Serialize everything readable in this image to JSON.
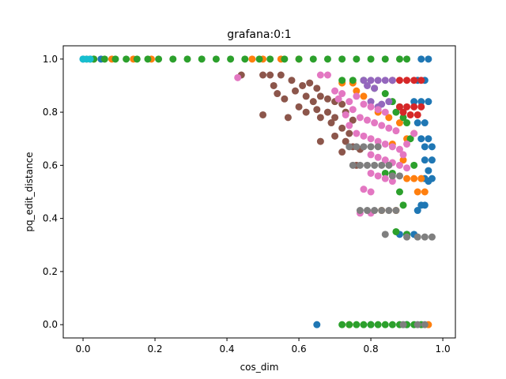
{
  "chart_data": {
    "type": "scatter",
    "title": "grafana:0:1",
    "xlabel": "cos_dim",
    "ylabel": "pq_edit_distance",
    "xlim": [
      -0.055,
      1.035
    ],
    "ylim": [
      -0.05,
      1.05
    ],
    "xticks": [
      0.0,
      0.2,
      0.4,
      0.6,
      0.8,
      1.0
    ],
    "yticks": [
      0.0,
      0.2,
      0.4,
      0.6,
      0.8,
      1.0
    ],
    "xtick_labels": [
      "0.0",
      "0.2",
      "0.4",
      "0.6",
      "0.8",
      "1.0"
    ],
    "ytick_labels": [
      "0.0",
      "0.2",
      "0.4",
      "0.6",
      "0.8",
      "1.0"
    ],
    "grid": false,
    "series": [
      {
        "color": "#1f77b4",
        "points": [
          [
            0.0,
            1.0
          ],
          [
            0.02,
            1.0
          ],
          [
            0.05,
            1.0
          ],
          [
            0.94,
            1.0
          ],
          [
            0.96,
            1.0
          ],
          [
            0.93,
            0.92
          ],
          [
            0.95,
            0.92
          ],
          [
            0.92,
            0.84
          ],
          [
            0.94,
            0.84
          ],
          [
            0.96,
            0.84
          ],
          [
            0.93,
            0.76
          ],
          [
            0.95,
            0.76
          ],
          [
            0.94,
            0.7
          ],
          [
            0.96,
            0.7
          ],
          [
            0.95,
            0.67
          ],
          [
            0.97,
            0.67
          ],
          [
            0.95,
            0.62
          ],
          [
            0.97,
            0.62
          ],
          [
            0.96,
            0.58
          ],
          [
            0.95,
            0.55
          ],
          [
            0.97,
            0.55
          ],
          [
            0.96,
            0.54
          ],
          [
            0.95,
            0.45
          ],
          [
            0.94,
            0.45
          ],
          [
            0.93,
            0.43
          ],
          [
            0.88,
            0.34
          ],
          [
            0.9,
            0.34
          ],
          [
            0.92,
            0.34
          ],
          [
            0.65,
            0.0
          ],
          [
            0.8,
            0.0
          ],
          [
            0.9,
            0.0
          ]
        ]
      },
      {
        "color": "#ff7f0e",
        "points": [
          [
            0.01,
            1.0
          ],
          [
            0.03,
            1.0
          ],
          [
            0.08,
            1.0
          ],
          [
            0.14,
            1.0
          ],
          [
            0.19,
            1.0
          ],
          [
            0.47,
            1.0
          ],
          [
            0.5,
            1.0
          ],
          [
            0.55,
            1.0
          ],
          [
            0.6,
            1.0
          ],
          [
            0.72,
            0.91
          ],
          [
            0.75,
            0.91
          ],
          [
            0.76,
            0.88
          ],
          [
            0.78,
            0.86
          ],
          [
            0.82,
            0.8
          ],
          [
            0.85,
            0.78
          ],
          [
            0.88,
            0.76
          ],
          [
            0.92,
            0.72
          ],
          [
            0.9,
            0.7
          ],
          [
            0.86,
            0.68
          ],
          [
            0.89,
            0.62
          ],
          [
            0.92,
            0.55
          ],
          [
            0.9,
            0.55
          ],
          [
            0.94,
            0.55
          ],
          [
            0.93,
            0.5
          ],
          [
            0.95,
            0.5
          ],
          [
            0.83,
            0.43
          ],
          [
            0.87,
            0.43
          ],
          [
            0.74,
            0.0
          ],
          [
            0.96,
            0.0
          ]
        ]
      },
      {
        "color": "#2ca02c",
        "points": [
          [
            0.03,
            1.0
          ],
          [
            0.06,
            1.0
          ],
          [
            0.09,
            1.0
          ],
          [
            0.12,
            1.0
          ],
          [
            0.15,
            1.0
          ],
          [
            0.18,
            1.0
          ],
          [
            0.21,
            1.0
          ],
          [
            0.25,
            1.0
          ],
          [
            0.29,
            1.0
          ],
          [
            0.33,
            1.0
          ],
          [
            0.37,
            1.0
          ],
          [
            0.41,
            1.0
          ],
          [
            0.45,
            1.0
          ],
          [
            0.49,
            1.0
          ],
          [
            0.52,
            1.0
          ],
          [
            0.56,
            1.0
          ],
          [
            0.6,
            1.0
          ],
          [
            0.64,
            1.0
          ],
          [
            0.68,
            1.0
          ],
          [
            0.72,
            1.0
          ],
          [
            0.76,
            1.0
          ],
          [
            0.8,
            1.0
          ],
          [
            0.84,
            1.0
          ],
          [
            0.88,
            1.0
          ],
          [
            0.9,
            1.0
          ],
          [
            0.72,
            0.92
          ],
          [
            0.75,
            0.92
          ],
          [
            0.78,
            0.92
          ],
          [
            0.81,
            0.89
          ],
          [
            0.84,
            0.87
          ],
          [
            0.86,
            0.84
          ],
          [
            0.88,
            0.82
          ],
          [
            0.87,
            0.8
          ],
          [
            0.89,
            0.78
          ],
          [
            0.9,
            0.76
          ],
          [
            0.91,
            0.7
          ],
          [
            0.92,
            0.6
          ],
          [
            0.84,
            0.57
          ],
          [
            0.86,
            0.57
          ],
          [
            0.88,
            0.5
          ],
          [
            0.89,
            0.45
          ],
          [
            0.87,
            0.35
          ],
          [
            0.9,
            0.34
          ],
          [
            0.72,
            0.0
          ],
          [
            0.74,
            0.0
          ],
          [
            0.76,
            0.0
          ],
          [
            0.78,
            0.0
          ],
          [
            0.8,
            0.0
          ],
          [
            0.82,
            0.0
          ],
          [
            0.84,
            0.0
          ],
          [
            0.86,
            0.0
          ],
          [
            0.88,
            0.0
          ],
          [
            0.9,
            0.0
          ],
          [
            0.92,
            0.0
          ],
          [
            0.94,
            0.0
          ]
        ]
      },
      {
        "color": "#d62728",
        "points": [
          [
            0.86,
            0.92
          ],
          [
            0.88,
            0.92
          ],
          [
            0.9,
            0.92
          ],
          [
            0.92,
            0.92
          ],
          [
            0.94,
            0.92
          ],
          [
            0.88,
            0.82
          ],
          [
            0.9,
            0.82
          ],
          [
            0.92,
            0.82
          ],
          [
            0.94,
            0.82
          ],
          [
            0.89,
            0.8
          ],
          [
            0.91,
            0.79
          ],
          [
            0.93,
            0.79
          ]
        ]
      },
      {
        "color": "#9467bd",
        "points": [
          [
            0.78,
            0.92
          ],
          [
            0.8,
            0.92
          ],
          [
            0.82,
            0.92
          ],
          [
            0.84,
            0.92
          ],
          [
            0.86,
            0.92
          ],
          [
            0.79,
            0.9
          ],
          [
            0.81,
            0.89
          ],
          [
            0.8,
            0.84
          ],
          [
            0.83,
            0.83
          ],
          [
            0.85,
            0.84
          ],
          [
            0.82,
            0.82
          ]
        ]
      },
      {
        "color": "#8c564b",
        "points": [
          [
            0.44,
            0.94
          ],
          [
            0.5,
            0.94
          ],
          [
            0.52,
            0.94
          ],
          [
            0.55,
            0.94
          ],
          [
            0.58,
            0.92
          ],
          [
            0.61,
            0.9
          ],
          [
            0.63,
            0.91
          ],
          [
            0.65,
            0.89
          ],
          [
            0.53,
            0.9
          ],
          [
            0.54,
            0.87
          ],
          [
            0.56,
            0.85
          ],
          [
            0.59,
            0.88
          ],
          [
            0.62,
            0.86
          ],
          [
            0.64,
            0.84
          ],
          [
            0.66,
            0.86
          ],
          [
            0.68,
            0.85
          ],
          [
            0.7,
            0.84
          ],
          [
            0.72,
            0.83
          ],
          [
            0.6,
            0.82
          ],
          [
            0.62,
            0.8
          ],
          [
            0.65,
            0.81
          ],
          [
            0.68,
            0.8
          ],
          [
            0.7,
            0.78
          ],
          [
            0.73,
            0.8
          ],
          [
            0.75,
            0.77
          ],
          [
            0.5,
            0.79
          ],
          [
            0.57,
            0.78
          ],
          [
            0.66,
            0.78
          ],
          [
            0.69,
            0.76
          ],
          [
            0.72,
            0.74
          ],
          [
            0.74,
            0.72
          ],
          [
            0.7,
            0.71
          ],
          [
            0.73,
            0.69
          ],
          [
            0.75,
            0.67
          ],
          [
            0.77,
            0.66
          ],
          [
            0.72,
            0.65
          ],
          [
            0.66,
            0.69
          ],
          [
            0.76,
            0.6
          ]
        ]
      },
      {
        "color": "#e377c2",
        "points": [
          [
            0.43,
            0.93
          ],
          [
            0.66,
            0.94
          ],
          [
            0.68,
            0.94
          ],
          [
            0.7,
            0.88
          ],
          [
            0.72,
            0.87
          ],
          [
            0.71,
            0.85
          ],
          [
            0.74,
            0.84
          ],
          [
            0.76,
            0.86
          ],
          [
            0.78,
            0.83
          ],
          [
            0.8,
            0.82
          ],
          [
            0.82,
            0.81
          ],
          [
            0.84,
            0.8
          ],
          [
            0.75,
            0.81
          ],
          [
            0.73,
            0.79
          ],
          [
            0.77,
            0.78
          ],
          [
            0.79,
            0.77
          ],
          [
            0.81,
            0.76
          ],
          [
            0.83,
            0.75
          ],
          [
            0.85,
            0.74
          ],
          [
            0.87,
            0.73
          ],
          [
            0.74,
            0.75
          ],
          [
            0.76,
            0.72
          ],
          [
            0.78,
            0.71
          ],
          [
            0.8,
            0.7
          ],
          [
            0.82,
            0.69
          ],
          [
            0.84,
            0.68
          ],
          [
            0.86,
            0.67
          ],
          [
            0.88,
            0.66
          ],
          [
            0.8,
            0.64
          ],
          [
            0.82,
            0.63
          ],
          [
            0.84,
            0.62
          ],
          [
            0.86,
            0.61
          ],
          [
            0.88,
            0.6
          ],
          [
            0.9,
            0.59
          ],
          [
            0.8,
            0.57
          ],
          [
            0.82,
            0.56
          ],
          [
            0.84,
            0.55
          ],
          [
            0.86,
            0.54
          ],
          [
            0.78,
            0.51
          ],
          [
            0.8,
            0.5
          ],
          [
            0.77,
            0.42
          ],
          [
            0.8,
            0.42
          ],
          [
            0.92,
            0.72
          ],
          [
            0.9,
            0.68
          ],
          [
            0.89,
            0.64
          ]
        ]
      },
      {
        "color": "#7f7f7f",
        "points": [
          [
            0.74,
            0.67
          ],
          [
            0.76,
            0.67
          ],
          [
            0.78,
            0.67
          ],
          [
            0.8,
            0.67
          ],
          [
            0.82,
            0.67
          ],
          [
            0.75,
            0.6
          ],
          [
            0.77,
            0.6
          ],
          [
            0.79,
            0.6
          ],
          [
            0.81,
            0.6
          ],
          [
            0.83,
            0.6
          ],
          [
            0.85,
            0.6
          ],
          [
            0.86,
            0.56
          ],
          [
            0.88,
            0.56
          ],
          [
            0.77,
            0.43
          ],
          [
            0.79,
            0.43
          ],
          [
            0.81,
            0.43
          ],
          [
            0.83,
            0.43
          ],
          [
            0.85,
            0.43
          ],
          [
            0.87,
            0.43
          ],
          [
            0.84,
            0.34
          ],
          [
            0.9,
            0.33
          ],
          [
            0.93,
            0.33
          ],
          [
            0.95,
            0.33
          ],
          [
            0.97,
            0.33
          ],
          [
            0.89,
            0.0
          ],
          [
            0.93,
            0.0
          ],
          [
            0.95,
            0.0
          ]
        ]
      },
      {
        "color": "#17becf",
        "points": [
          [
            0.0,
            1.0
          ],
          [
            0.01,
            1.0
          ],
          [
            0.02,
            1.0
          ]
        ]
      }
    ]
  }
}
